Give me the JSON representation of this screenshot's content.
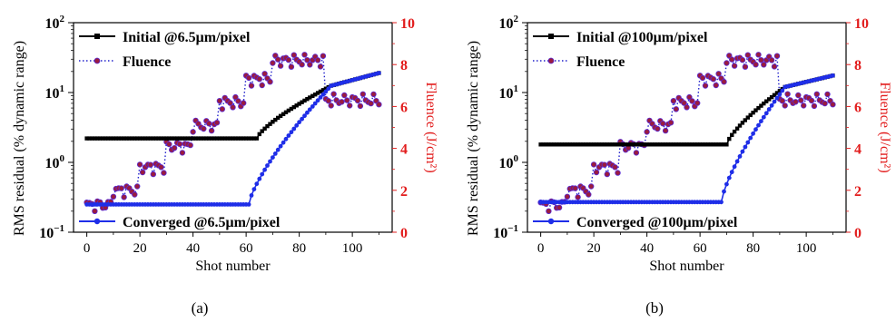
{
  "figure": {
    "panel_labels": [
      "(a)",
      "(b)"
    ]
  },
  "chart_data": [
    {
      "type": "line",
      "panel": "(a)",
      "xlabel": "Shot number",
      "ylabel_left": "RMS residual (% dynamic range)",
      "ylabel_right": "Fluence (J/cm²)",
      "xlim": [
        -5,
        115
      ],
      "ylim_left": [
        0.1,
        100
      ],
      "ylim_right": [
        0,
        10
      ],
      "left_scale": "log",
      "xticks": [
        "0",
        "20",
        "40",
        "60",
        "80",
        "100"
      ],
      "yticks_right": [
        "0",
        "2",
        "4",
        "6",
        "8",
        "10"
      ],
      "grid": false,
      "colors": {
        "initial": "#000000",
        "converged": "#1f2ee8",
        "fluence_line": "#2222cc",
        "fluence_marker": "#9a1b3f",
        "right_axis": "#e21d1d"
      },
      "series": [
        {
          "name": "Initial @6.5μm/pixel",
          "axis": "left",
          "style": "square-line",
          "flat_value": 2.2,
          "breakpoint": 64,
          "end_value": 19,
          "knee": 92,
          "knee_value": 12.5
        },
        {
          "name": "Converged @6.5μm/pixel",
          "axis": "left",
          "style": "circle-line",
          "flat_value": 0.25,
          "breakpoint": 61,
          "end_value": 19,
          "knee": 92,
          "knee_value": 12.5
        },
        {
          "name": "Fluence",
          "axis": "right",
          "style": "dotted-circle",
          "levels": [
            [
              0,
              9,
              1.3
            ],
            [
              10,
              19,
              2.0
            ],
            [
              20,
              29,
              3.1
            ],
            [
              30,
              39,
              4.1
            ],
            [
              40,
              49,
              5.1
            ],
            [
              50,
              59,
              6.2
            ],
            [
              60,
              69,
              7.3
            ],
            [
              70,
              89,
              8.2
            ],
            [
              90,
              110,
              6.3
            ]
          ]
        }
      ],
      "legend": [
        "Initial @6.5μm/pixel",
        "Fluence",
        "Converged @6.5μm/pixel"
      ]
    },
    {
      "type": "line",
      "panel": "(b)",
      "xlabel": "Shot number",
      "ylabel_left": "RMS residual (% dynamic range)",
      "ylabel_right": "Fluence (J/cm²)",
      "xlim": [
        -5,
        115
      ],
      "ylim_left": [
        0.1,
        100
      ],
      "ylim_right": [
        0,
        10
      ],
      "left_scale": "log",
      "xticks": [
        "0",
        "20",
        "40",
        "60",
        "80",
        "100"
      ],
      "yticks_right": [
        "0",
        "2",
        "4",
        "6",
        "8",
        "10"
      ],
      "grid": false,
      "colors": {
        "initial": "#000000",
        "converged": "#1f2ee8",
        "fluence_line": "#2222cc",
        "fluence_marker": "#9a1b3f",
        "right_axis": "#e21d1d"
      },
      "series": [
        {
          "name": "Initial @100μm/pixel",
          "axis": "left",
          "style": "square-line",
          "flat_value": 1.8,
          "breakpoint": 70,
          "end_value": 17.5,
          "knee": 92,
          "knee_value": 12
        },
        {
          "name": "Converged @100μm/pixel",
          "axis": "left",
          "style": "circle-line",
          "flat_value": 0.27,
          "breakpoint": 68,
          "end_value": 17.5,
          "knee": 92,
          "knee_value": 12
        },
        {
          "name": "Fluence",
          "axis": "right",
          "style": "dotted-circle",
          "levels": [
            [
              0,
              9,
              1.3
            ],
            [
              10,
              19,
              2.0
            ],
            [
              20,
              29,
              3.1
            ],
            [
              30,
              39,
              4.1
            ],
            [
              40,
              49,
              5.1
            ],
            [
              50,
              59,
              6.2
            ],
            [
              60,
              69,
              7.3
            ],
            [
              70,
              89,
              8.2
            ],
            [
              90,
              110,
              6.3
            ]
          ]
        }
      ],
      "legend": [
        "Initial @100μm/pixel",
        "Fluence",
        "Converged @100μm/pixel"
      ]
    }
  ]
}
